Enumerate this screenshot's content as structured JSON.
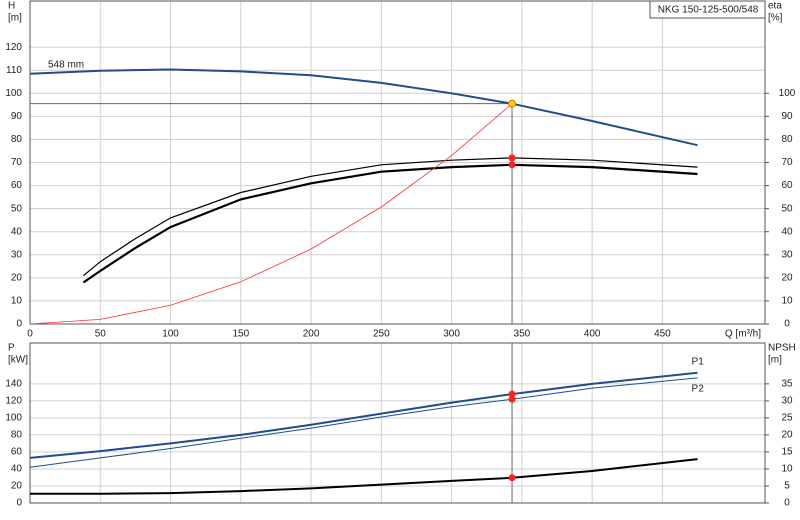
{
  "chart_data": [
    {
      "type": "line",
      "title": "NKG 150-125-500/548",
      "ylabel": [
        "H",
        "[m]"
      ],
      "y2label": [
        "eta",
        "[%]"
      ],
      "xlabel": "Q [m³/h]",
      "xlim": [
        0,
        523
      ],
      "xticks": [
        0,
        50,
        100,
        150,
        200,
        250,
        300,
        350,
        400,
        450
      ],
      "show_xtick_labels": true,
      "ylim": [
        0,
        140
      ],
      "yticks": [
        0,
        10,
        20,
        30,
        40,
        50,
        60,
        70,
        80,
        90,
        100,
        110,
        120
      ],
      "y2lim": [
        0,
        140
      ],
      "y2ticks": [
        0,
        10,
        20,
        30,
        40,
        50,
        60,
        70,
        80,
        90,
        100
      ],
      "grid": true,
      "crosshair": "hv",
      "series": [
        {
          "name": "548 mm",
          "color": "#1f4e8c",
          "linewidth": 2,
          "x": [
            0,
            50,
            100,
            150,
            200,
            250,
            300,
            343,
            400,
            475
          ],
          "values": [
            108.5,
            109.8,
            110.3,
            109.5,
            107.8,
            104.5,
            100,
            95.5,
            88,
            77.5
          ]
        },
        {
          "color": "#000000",
          "linewidth": 1.2,
          "axis": "y2",
          "x": [
            38,
            50,
            75,
            100,
            150,
            200,
            250,
            300,
            343,
            400,
            475
          ],
          "values": [
            21,
            27,
            37,
            46,
            57,
            64,
            69,
            71,
            72,
            71,
            68
          ]
        },
        {
          "color": "#000000",
          "linewidth": 2.2,
          "axis": "y2",
          "x": [
            38,
            50,
            75,
            100,
            150,
            200,
            250,
            300,
            343,
            400,
            475
          ],
          "values": [
            18,
            23,
            33,
            42,
            54,
            61,
            66,
            68,
            69,
            68,
            65
          ]
        },
        {
          "color": "#ff3030",
          "linewidth": 0.8,
          "x": [
            0,
            50,
            100,
            150,
            200,
            250,
            300,
            343
          ],
          "values": [
            0,
            2,
            8.1,
            18.3,
            32.5,
            50.7,
            73,
            95.5
          ]
        }
      ],
      "points": [
        {
          "x": 343,
          "y": 95.5,
          "color": "#ffd700",
          "crosshair": true
        },
        {
          "x": 343,
          "y": 72,
          "color": "#ff2020",
          "axis": "y2"
        },
        {
          "x": 343,
          "y": 69,
          "color": "#ff2020",
          "axis": "y2"
        }
      ]
    },
    {
      "type": "line",
      "ylabel": [
        "P",
        "[kW]"
      ],
      "y2label": [
        "NPSH",
        "[m]"
      ],
      "xlim": [
        0,
        523
      ],
      "xticks": [
        0,
        50,
        100,
        150,
        200,
        250,
        300,
        350,
        400,
        450
      ],
      "show_xtick_labels": false,
      "ylim": [
        0,
        188
      ],
      "yticks": [
        0,
        20,
        40,
        60,
        80,
        100,
        120,
        140
      ],
      "y2lim": [
        0,
        47
      ],
      "y2ticks": [
        0,
        5,
        10,
        15,
        20,
        25,
        30,
        35
      ],
      "grid": true,
      "crosshair": "v",
      "series": [
        {
          "name": "P1",
          "color": "#1f4e8c",
          "linewidth": 2,
          "x": [
            0,
            50,
            100,
            150,
            200,
            250,
            300,
            343,
            400,
            475
          ],
          "values": [
            53,
            61,
            70,
            80,
            92,
            105,
            118,
            128,
            140,
            153
          ]
        },
        {
          "name": "P2",
          "color": "#1f4e8c",
          "linewidth": 1,
          "x": [
            0,
            50,
            100,
            150,
            200,
            250,
            300,
            343,
            400,
            475
          ],
          "values": [
            42,
            53,
            64,
            76,
            88,
            101,
            113,
            122,
            135,
            147
          ]
        },
        {
          "color": "#000000",
          "linewidth": 2,
          "axis": "y2",
          "x": [
            0,
            50,
            100,
            150,
            200,
            250,
            300,
            343,
            400,
            475
          ],
          "values": [
            2.7,
            2.7,
            2.9,
            3.5,
            4.3,
            5.4,
            6.5,
            7.4,
            9.4,
            12.9
          ]
        }
      ],
      "points": [
        {
          "x": 343,
          "y": 128,
          "color": "#ff2020",
          "crosshair": true
        },
        {
          "x": 343,
          "y": 122,
          "color": "#ff2020"
        },
        {
          "x": 343,
          "y": 7.4,
          "color": "#ff2020",
          "axis": "y2"
        }
      ]
    }
  ]
}
